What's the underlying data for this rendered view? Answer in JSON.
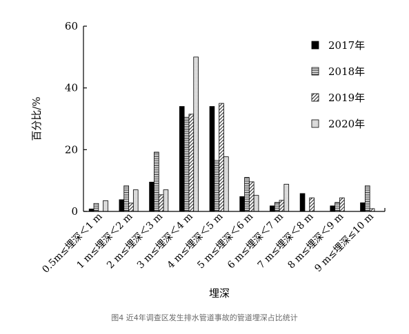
{
  "caption": "图4 近4年调查区发生排水管道事故的管道埋深占比统计",
  "chart_data": {
    "type": "bar",
    "xlabel": "埋深",
    "ylabel": "百分比/%",
    "ylim": [
      0,
      60
    ],
    "yticks": [
      0,
      20,
      40,
      60
    ],
    "legend_position": "top-right",
    "categories": [
      "0.5m≤埋深＜1 m",
      "1 m≤埋深＜2 m",
      "2 m≤埋深＜3 m",
      "3 m≤埋深＜4 m",
      "4 m≤埋深＜5 m",
      "5 m≤埋深＜6 m",
      "6 m≤埋深＜7 m",
      "7 m≤埋深＜8 m",
      "8 m≤埋深＜9 m",
      "9 m≤埋深≤10 m"
    ],
    "series": [
      {
        "name": "2017年",
        "pattern": "solid",
        "values": [
          0.8,
          3.8,
          9.5,
          34.0,
          34.0,
          4.8,
          1.8,
          5.8,
          1.8,
          2.8
        ]
      },
      {
        "name": "2018年",
        "pattern": "horizontal-lines",
        "values": [
          2.6,
          8.3,
          19.2,
          30.5,
          16.5,
          11.0,
          2.9,
          0,
          2.9,
          8.3
        ]
      },
      {
        "name": "2019年",
        "pattern": "diagonal-lines",
        "values": [
          0,
          2.7,
          5.4,
          31.5,
          35.0,
          9.6,
          3.6,
          4.4,
          4.4,
          0.9
        ]
      },
      {
        "name": "2020年",
        "pattern": "light-fill",
        "values": [
          3.5,
          7.0,
          7.0,
          50.0,
          17.7,
          5.2,
          8.8,
          0,
          0,
          0
        ]
      }
    ]
  }
}
